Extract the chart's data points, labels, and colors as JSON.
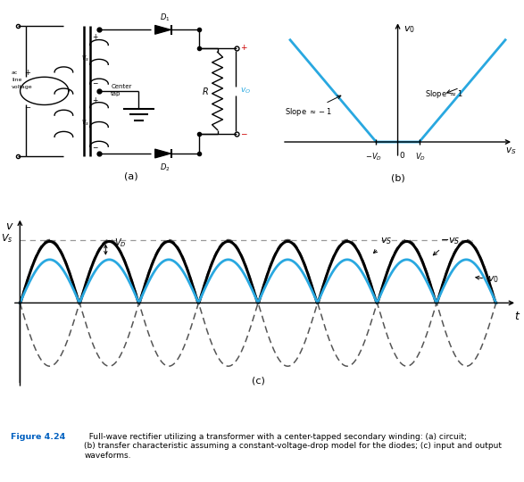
{
  "bg_color": "#ffffff",
  "cyan_color": "#29a8e0",
  "caption_color_blue": "#0060c0",
  "panel_a_label": "(a)",
  "panel_b_label": "(b)",
  "panel_c_label": "(c)"
}
